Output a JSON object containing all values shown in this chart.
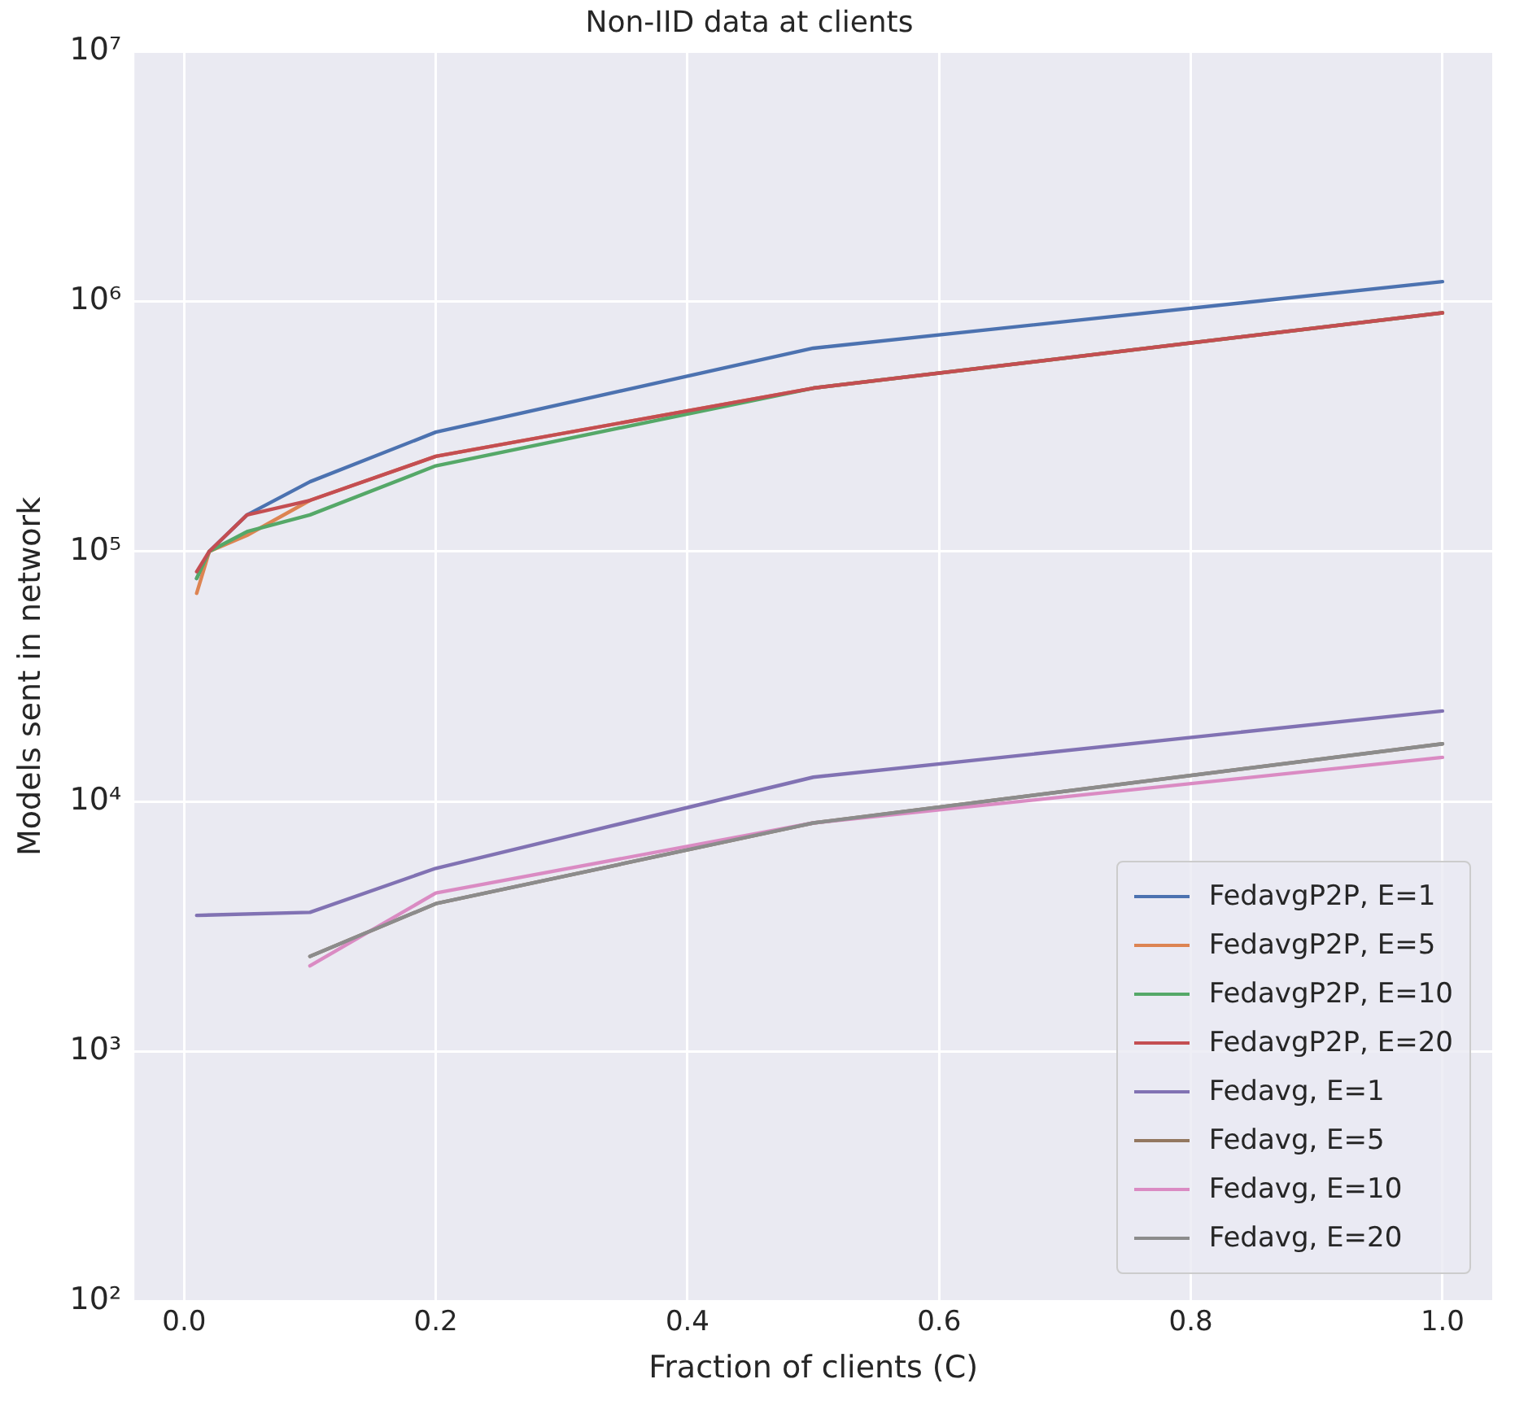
{
  "chart_data": {
    "type": "line",
    "title": "Non-IID data at clients",
    "xlabel": "Fraction of clients (C)",
    "ylabel": "Models sent in network",
    "log": "y",
    "grid": true,
    "legend": "bottom right",
    "marker": "none",
    "line_style": "solid",
    "xlim": [
      -0.0395,
      1.0395
    ],
    "xticks": [
      {
        "value": 0,
        "label": "0.0"
      },
      0.2,
      0.4,
      0.6,
      0.8,
      {
        "value": 1,
        "label": "1.0"
      }
    ],
    "ylim": [
      100,
      10000000
    ],
    "yticks": [
      {
        "value": 100,
        "label": "10²"
      },
      {
        "value": 1000,
        "label": "10³"
      },
      {
        "value": 10000,
        "label": "10⁴"
      },
      {
        "value": 100000,
        "label": "10⁵"
      },
      {
        "value": 1000000,
        "label": "10⁶"
      },
      {
        "value": 10000000,
        "label": "10⁷"
      }
    ],
    "x": [
      0.01,
      0.02,
      0.05,
      0.1,
      0.2,
      0.5,
      1.0
    ],
    "series": [
      {
        "name": "FedavgP2P, E=1",
        "color": "#4c72b0",
        "values": [
          78000,
          100000,
          140000,
          190000,
          300000,
          650000,
          1200000
        ]
      },
      {
        "name": "FedavgP2P, E=5",
        "color": "#dd8452",
        "values": [
          68000,
          100000,
          116000,
          160000,
          240000,
          450000,
          900000
        ]
      },
      {
        "name": "FedavgP2P, E=10",
        "color": "#55a868",
        "values": [
          78000,
          100000,
          120000,
          140000,
          220000,
          450000,
          900000
        ]
      },
      {
        "name": "FedavgP2P, E=20",
        "color": "#c44e52",
        "values": [
          83000,
          100000,
          140000,
          160000,
          240000,
          450000,
          900000
        ]
      },
      {
        "name": "Fedavg, E=1",
        "color": "#8172b3",
        "x": [
          0.01,
          0.1,
          0.2,
          0.5,
          1.0
        ],
        "values": [
          3500,
          3600,
          5400,
          12500,
          23000
        ]
      },
      {
        "name": "Fedavg, E=5",
        "color": "#937860",
        "x": [
          0.1,
          0.2,
          0.5,
          1.0
        ],
        "values": [
          2400,
          3900,
          8200,
          17000
        ]
      },
      {
        "name": "Fedavg, E=10",
        "color": "#da8bc3",
        "x": [
          0.1,
          0.2,
          0.5,
          1.0
        ],
        "values": [
          2200,
          4300,
          8200,
          15000
        ]
      },
      {
        "name": "Fedavg, E=20",
        "color": "#8c8c8c",
        "x": [
          0.1,
          0.2,
          0.5,
          1.0
        ],
        "values": [
          2400,
          3900,
          8200,
          17000
        ]
      }
    ]
  }
}
